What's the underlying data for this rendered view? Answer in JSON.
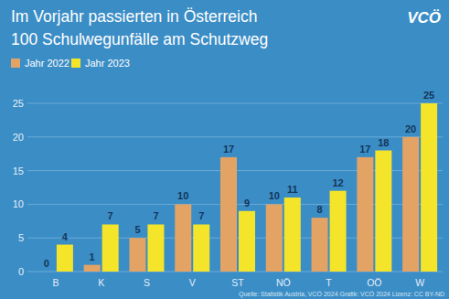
{
  "chart_data": {
    "type": "bar",
    "title": "Im Vorjahr passierten in Österreich\n100 Schulwegunfälle am Schutzweg",
    "logo": "VCÖ",
    "source": "Quelle: Statistik Austria, VCÖ 2024 Grafik: VCÖ 2024 Lizenz: CC BY-ND",
    "categories": [
      "B",
      "K",
      "S",
      "V",
      "ST",
      "NÖ",
      "T",
      "OÖ",
      "W"
    ],
    "series": [
      {
        "name": "Jahr 2022",
        "color": "#e2a365",
        "values": [
          0,
          1,
          5,
          10,
          17,
          10,
          8,
          17,
          20
        ]
      },
      {
        "name": "Jahr 2023",
        "color": "#f5e52a",
        "values": [
          4,
          7,
          7,
          7,
          9,
          11,
          12,
          18,
          25
        ]
      }
    ],
    "ylim": [
      0,
      25
    ],
    "yticks": [
      0,
      5,
      10,
      15,
      20,
      25
    ],
    "grid": true,
    "data_labels": true,
    "legend": "top-left"
  }
}
